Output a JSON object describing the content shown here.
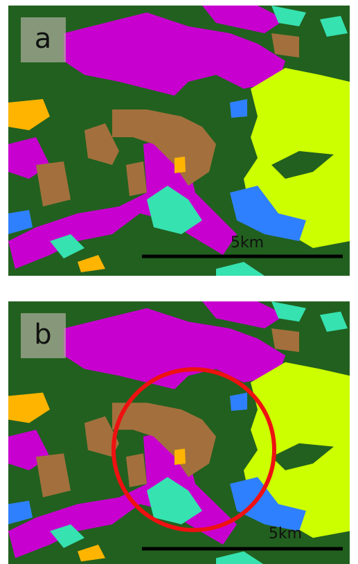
{
  "panels": [
    {
      "label": "a",
      "scale_label": "5km"
    },
    {
      "label": "b",
      "scale_label": "5km"
    }
  ]
}
